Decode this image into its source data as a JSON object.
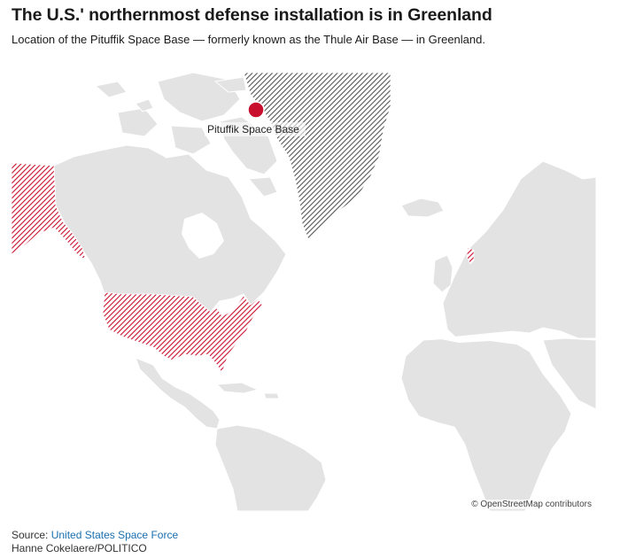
{
  "header": {
    "title": "The U.S.' northernmost defense installation is in Greenland",
    "subtitle": "Location of the Pituffik Space Base — formerly known as the Thule Air Base — in Greenland."
  },
  "map": {
    "marker_label": "Pituffik Space Base",
    "attribution": "© OpenStreetMap contributors",
    "colors": {
      "land": "#e3e3e3",
      "border": "#ffffff",
      "us_hatch": "#c8102e",
      "greenland_hatch": "#555555",
      "marker": "#c8102e"
    },
    "highlighted_regions": [
      "United States",
      "Greenland"
    ]
  },
  "footer": {
    "source_prefix": "Source: ",
    "source_link": "United States Space Force",
    "credit": "Hanne Cokelaere/POLITICO"
  }
}
